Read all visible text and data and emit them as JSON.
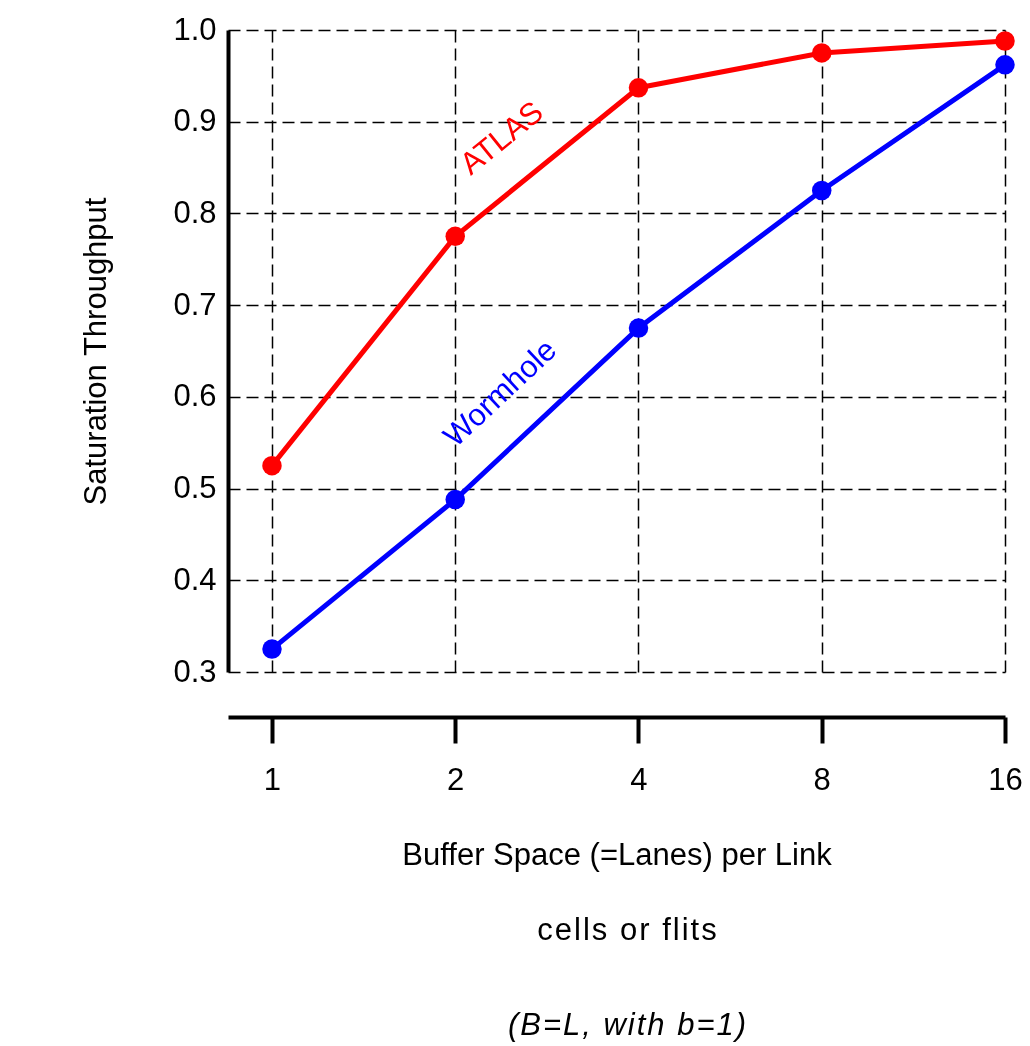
{
  "chart_data": {
    "type": "line",
    "xlabel": "Buffer Space (=Lanes) per Link",
    "ylabel": "Saturation Throughput",
    "annotations": [
      "cells or flits",
      "(B=L, with b=1)"
    ],
    "categories": [
      "1",
      "2",
      "4",
      "8",
      "16"
    ],
    "series": [
      {
        "name": "ATLAS",
        "color": "#ff0000",
        "values": [
          0.525,
          0.775,
          0.937,
          0.975,
          0.988
        ]
      },
      {
        "name": "Wormhole",
        "color": "#0000ff",
        "values": [
          0.325,
          0.488,
          0.675,
          0.825,
          0.962
        ]
      }
    ],
    "ylim": [
      0.3,
      1.0
    ],
    "yticks": [
      0.3,
      0.4,
      0.5,
      0.6,
      0.7,
      0.8,
      0.9,
      {
        "value": 1,
        "label": "1.0"
      }
    ],
    "grid": true,
    "legend": false,
    "marker": "circle",
    "line_style": "solid"
  }
}
